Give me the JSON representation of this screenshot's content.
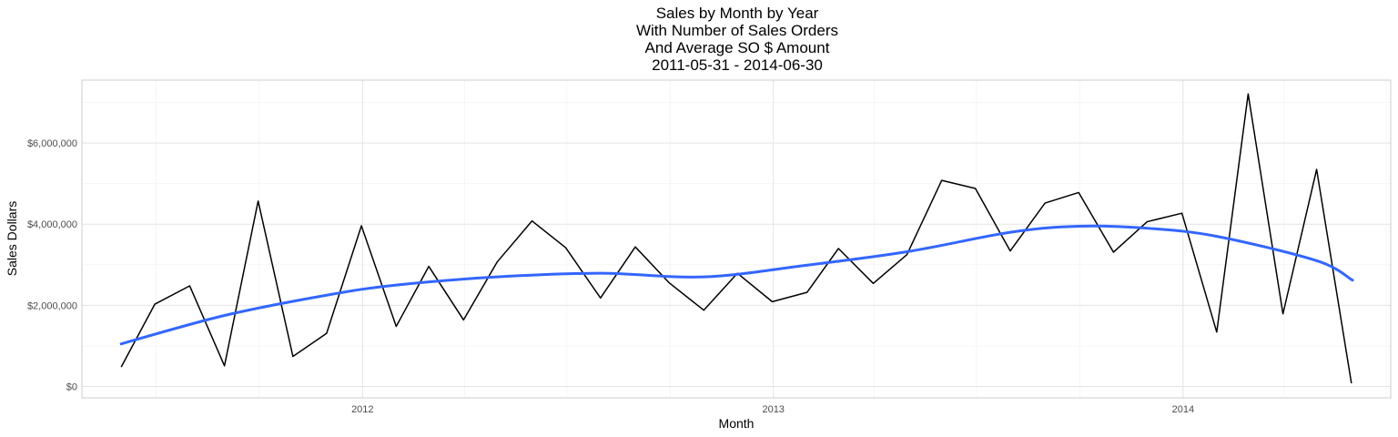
{
  "chart_data": {
    "type": "line",
    "title_lines": [
      "Sales by Month by Year",
      "With Number of Sales Orders",
      "And Average SO $ Amount",
      "2011-05-31  -  2014-06-30"
    ],
    "xlabel": "Month",
    "ylabel": "Sales Dollars",
    "x_tick_labels": [
      {
        "label": "2012",
        "date": "2012-01-01"
      },
      {
        "label": "2013",
        "date": "2013-01-01"
      },
      {
        "label": "2014",
        "date": "2014-01-01"
      }
    ],
    "y_tick_labels": [
      {
        "label": "$0",
        "value": 0
      },
      {
        "label": "$2,000,000",
        "value": 2000000
      },
      {
        "label": "$4,000,000",
        "value": 4000000
      },
      {
        "label": "$6,000,000",
        "value": 6000000
      }
    ],
    "xlim": [
      "2011-04-26",
      "2014-07-05"
    ],
    "ylim": [
      -280000,
      7550000
    ],
    "grid": true,
    "series": [
      {
        "role": "monthly-sales",
        "color": "#000000",
        "x": [
          "2011-05-31",
          "2011-06-30",
          "2011-07-31",
          "2011-08-31",
          "2011-09-30",
          "2011-10-31",
          "2011-11-30",
          "2011-12-31",
          "2012-01-31",
          "2012-02-29",
          "2012-03-31",
          "2012-04-30",
          "2012-05-31",
          "2012-06-30",
          "2012-07-31",
          "2012-08-31",
          "2012-09-30",
          "2012-10-31",
          "2012-11-30",
          "2012-12-31",
          "2013-01-31",
          "2013-02-28",
          "2013-03-31",
          "2013-04-30",
          "2013-05-31",
          "2013-06-30",
          "2013-07-31",
          "2013-08-31",
          "2013-09-30",
          "2013-10-31",
          "2013-11-30",
          "2013-12-31",
          "2014-01-31",
          "2014-02-28",
          "2014-03-31",
          "2014-04-30",
          "2014-05-31",
          "2014-06-30"
        ],
        "y": [
          480000,
          2030000,
          2480000,
          510000,
          4570000,
          740000,
          1310000,
          3960000,
          1480000,
          2960000,
          1640000,
          3070000,
          4080000,
          3420000,
          2180000,
          3440000,
          2560000,
          1880000,
          2790000,
          2090000,
          2320000,
          3400000,
          2540000,
          3250000,
          5080000,
          4880000,
          3340000,
          4520000,
          4780000,
          3310000,
          4060000,
          4270000,
          1340000,
          7210000,
          1790000,
          5350000,
          80000,
          null
        ]
      },
      {
        "role": "smoothed-trend",
        "color": "#3366FF",
        "x": [
          "2011-05-31",
          "2011-08-31",
          "2011-11-30",
          "2012-01-31",
          "2012-04-30",
          "2012-07-31",
          "2012-10-31",
          "2013-01-31",
          "2013-04-30",
          "2013-07-31",
          "2013-09-30",
          "2013-11-30",
          "2014-01-31",
          "2014-04-30",
          "2014-06-01"
        ],
        "y": [
          1050000,
          1750000,
          2250000,
          2500000,
          2700000,
          2790000,
          2700000,
          2990000,
          3320000,
          3800000,
          3950000,
          3900000,
          3700000,
          3100000,
          2620000
        ]
      }
    ]
  }
}
